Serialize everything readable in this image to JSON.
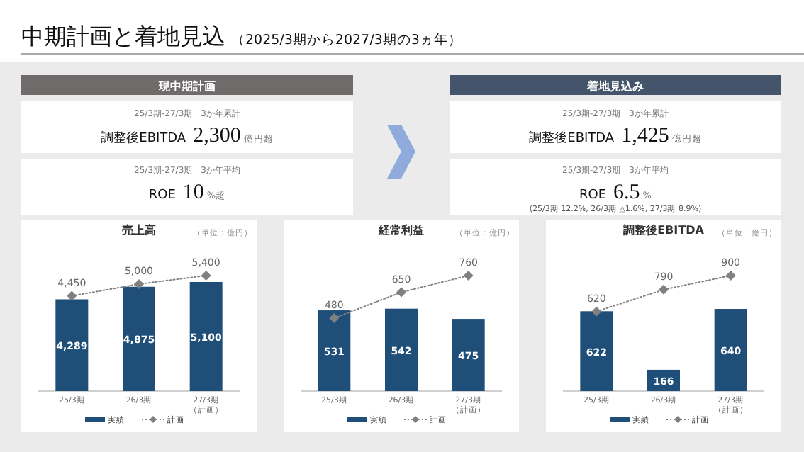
{
  "chart_data": [
    {
      "type": "other",
      "title": "中期計画と着地見込",
      "subtitle": "（2025/3期から2027/3期の3ヵ年）"
    },
    {
      "type": "other",
      "title": "現中期計画",
      "color": "#6f6b6b",
      "annotations": [
        "25/3期-27/3期　3か年累計",
        "調整後EBITDA",
        "2,300",
        "億円超",
        "25/3期-27/3期　3か年平均",
        "ROE",
        "10",
        "%超"
      ]
    },
    {
      "type": "other",
      "title": "着地見込み",
      "color": "#44546a",
      "annotations": [
        "25/3期-27/3期　3か年累計",
        "調整後EBITDA",
        "1,425",
        "億円超",
        "25/3期-27/3期　3か年平均",
        "ROE",
        "6.5",
        "%",
        "(25/3期 12.2%, 26/3期 △1.6%, 27/3期 8.9%)"
      ]
    },
    {
      "type": "bar",
      "title": "売上高",
      "annotations": [
        "（単位：億円）"
      ],
      "categories": [
        "25/3期",
        "26/3期",
        "27/3期（計画）"
      ],
      "legend": "bottom",
      "series": [
        {
          "name": "実績",
          "type": "bar",
          "color": "#1f4e79",
          "values": [
            4289,
            4875,
            5100
          ],
          "value_labels": [
            "4,289",
            "4,875",
            "5,100"
          ]
        },
        {
          "name": "計画",
          "type": "line",
          "color": "#808080",
          "line_style": "dotted",
          "marker": "diamond",
          "values": [
            4450,
            5000,
            5400
          ],
          "value_labels": [
            "4,450",
            "5,000",
            "5,400"
          ]
        }
      ]
    },
    {
      "type": "bar",
      "title": "経常利益",
      "annotations": [
        "（単位：億円）"
      ],
      "categories": [
        "25/3期",
        "26/3期",
        "27/3期（計画）"
      ],
      "data_labels": true,
      "legend": "bottom",
      "series": [
        {
          "name": "実績",
          "type": "bar",
          "color": "#1f4e79",
          "values": [
            531,
            542,
            475
          ]
        },
        {
          "name": "計画",
          "type": "line",
          "color": "#808080",
          "line_style": "dotted",
          "marker": "diamond",
          "values": [
            480,
            650,
            760
          ]
        }
      ]
    },
    {
      "type": "bar",
      "title": "調整後EBITDA",
      "annotations": [
        "（単位：億円）"
      ],
      "categories": [
        "25/3期",
        "26/3期",
        "27/3期（計画）"
      ],
      "data_labels": true,
      "legend": "bottom",
      "series": [
        {
          "name": "実績",
          "type": "bar",
          "color": "#1f4e79",
          "values": [
            622,
            166,
            640
          ]
        },
        {
          "name": "計画",
          "type": "line",
          "color": "#808080",
          "line_style": "dotted",
          "marker": "diamond",
          "values": [
            620,
            790,
            900
          ]
        }
      ]
    }
  ]
}
